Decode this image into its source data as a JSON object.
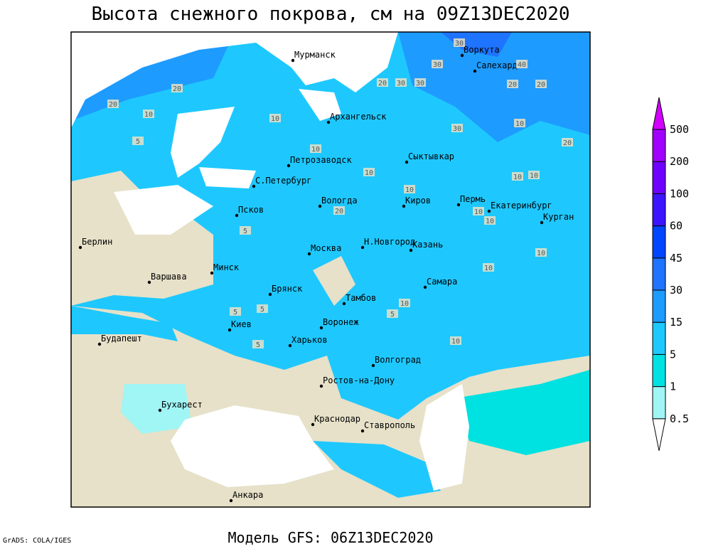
{
  "title": "Высота снежного покрова, см на 09Z13DEC2020",
  "footer": "Модель GFS: 06Z13DEC2020",
  "credit": "GrADS: COLA/IGES",
  "cities": [
    "Мурманск",
    "Воркута",
    "Салехард",
    "Архангельск",
    "Сыктывкар",
    "Петрозаводск",
    "С.Петербург",
    "Вологда",
    "Киров",
    "Пермь",
    "Екатеринбург",
    "Курган",
    "Псков",
    "Н.Новгород",
    "Казань",
    "Берлин",
    "Москва",
    "Минск",
    "Варшава",
    "Самара",
    "Брянск",
    "Тамбов",
    "Киев",
    "Воронеж",
    "Будапешт",
    "Харьков",
    "Волгоград",
    "Ростов-на-Дону",
    "Бухарест",
    "Краснодар",
    "Ставрополь",
    "Анкара"
  ],
  "contour_labels": [
    "30",
    "30",
    "40",
    "20",
    "20",
    "30",
    "30",
    "20",
    "20",
    "20",
    "10",
    "30",
    "10",
    "10",
    "20",
    "10",
    "5",
    "10",
    "20",
    "10",
    "10",
    "10",
    "10",
    "10",
    "10",
    "5",
    "10",
    "5",
    "5",
    "5",
    "10",
    "5",
    "10"
  ],
  "legend": {
    "levels": [
      "0.5",
      "1",
      "5",
      "15",
      "30",
      "45",
      "60",
      "100",
      "200",
      "500"
    ],
    "colors": [
      "#ffffff",
      "#a0f5f5",
      "#00e1e1",
      "#1ec8ff",
      "#1e9bff",
      "#1e73ff",
      "#0046ff",
      "#3c14ff",
      "#6e00ff",
      "#a000ff",
      "#d200ff"
    ]
  }
}
